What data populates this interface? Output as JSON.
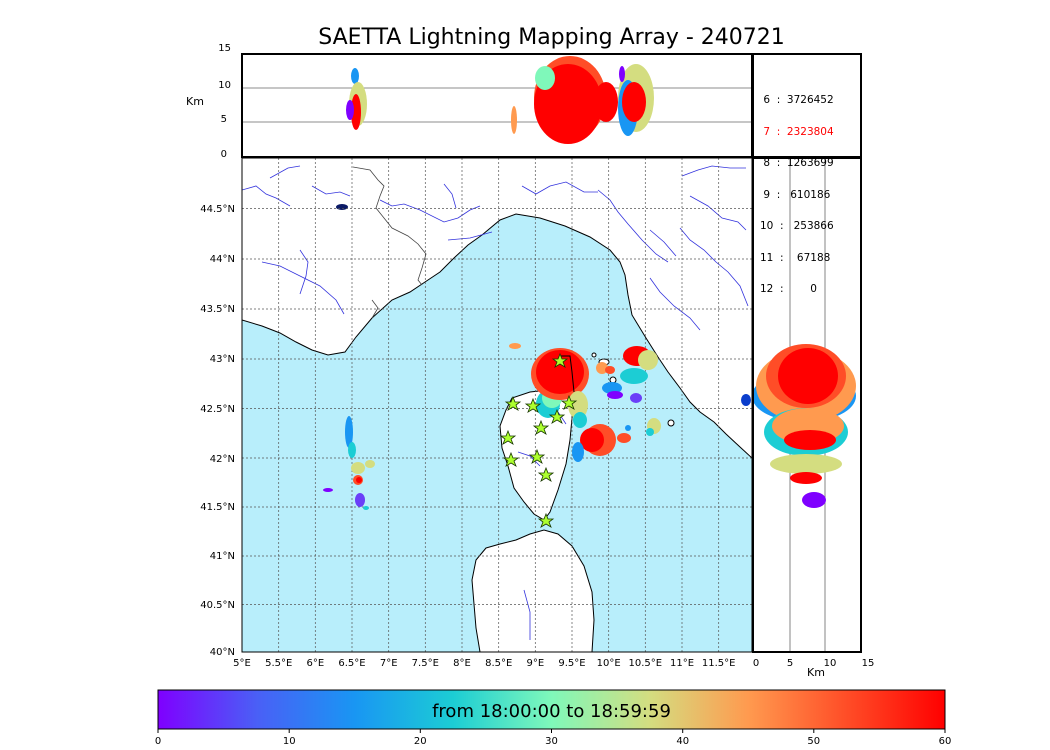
{
  "title": "SAETTA Lightning Mapping Array - 240721",
  "top_panel": {
    "axis_label": "Km",
    "y_ticks": [
      "15",
      "10",
      "5",
      "0"
    ]
  },
  "map": {
    "lat_labels": [
      "44.5°N",
      "44°N",
      "43.5°N",
      "43°N",
      "42.5°N",
      "42°N",
      "41.5°N",
      "41°N",
      "40.5°N",
      "40°N"
    ],
    "lon_labels": [
      "5°E",
      "5.5°E",
      "6°E",
      "6.5°E",
      "7°E",
      "7.5°E",
      "8°E",
      "8.5°E",
      "9°E",
      "9.5°E",
      "10°E",
      "10.5°E",
      "11°E",
      "11.5°E"
    ],
    "sea_color": "#b8eefb",
    "stations_icon": "star-icon",
    "station_color": "#adff2f"
  },
  "side_panel": {
    "axis_label": "Km",
    "x_ticks": [
      "0",
      "5",
      "10",
      "15"
    ]
  },
  "counts": [
    {
      "label": " 6  :  3726452",
      "highlight": false
    },
    {
      "label": " 7  :  2323804",
      "highlight": true
    },
    {
      "label": " 8  :  1263699",
      "highlight": false
    },
    {
      "label": " 9  :   610186",
      "highlight": false
    },
    {
      "label": "10  :   253866",
      "highlight": false
    },
    {
      "label": "11  :    67188",
      "highlight": false
    },
    {
      "label": "12  :        0",
      "highlight": false
    }
  ],
  "colorbar": {
    "time_range": "from 18:00:00 to 18:59:59",
    "ticks": [
      "0",
      "10",
      "20",
      "30",
      "40",
      "50",
      "60"
    ],
    "colors": [
      "#7f00ff",
      "#4a5ff6",
      "#1996f3",
      "#1ccdd4",
      "#7ff8ba",
      "#d4dd80",
      "#ff9a4f",
      "#ff4d27",
      "#ff0000"
    ]
  }
}
